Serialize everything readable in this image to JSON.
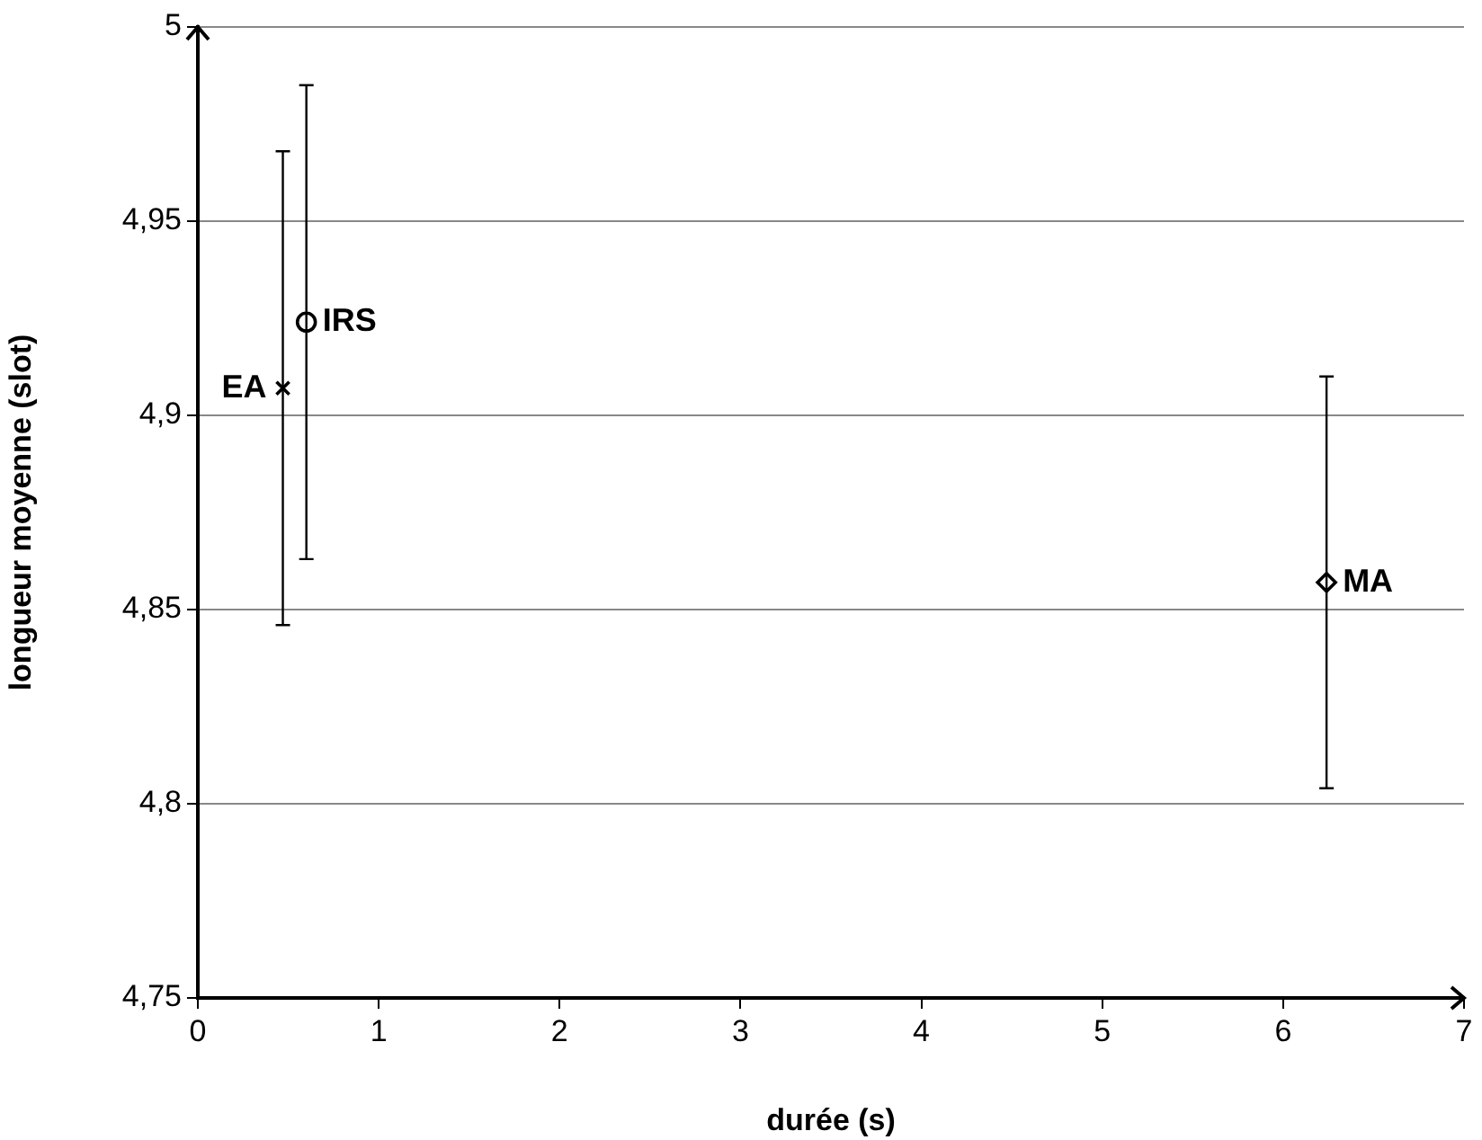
{
  "chart_data": {
    "type": "scatter",
    "xlabel": "durée (s)",
    "ylabel": "longueur moyenne (slot)",
    "xlim": [
      0,
      7
    ],
    "xticks": [
      0,
      1,
      2,
      3,
      4,
      5,
      6,
      7
    ],
    "ylim": [
      4.75,
      5
    ],
    "yticks": [
      {
        "value": 4.75,
        "label": "4,75"
      },
      {
        "value": 4.8,
        "label": "4,8"
      },
      {
        "value": 4.85,
        "label": "4,85"
      },
      {
        "value": 4.9,
        "label": "4,9"
      },
      {
        "value": 4.95,
        "label": "4,95"
      },
      {
        "value": 5,
        "label": "5"
      }
    ],
    "grid": "y",
    "legend": false,
    "series": [
      {
        "name": "EA",
        "color": "#000000",
        "marker": "cross",
        "x": [
          0.47
        ],
        "values": [
          4.907
        ],
        "errors": [
          0.061
        ]
      },
      {
        "name": "IRS",
        "color": "#000000",
        "marker": "circle",
        "x": [
          0.6
        ],
        "values": [
          4.924
        ],
        "errors": [
          0.061
        ]
      },
      {
        "name": "MA",
        "color": "#000000",
        "marker": "diamond",
        "x": [
          6.24
        ],
        "values": [
          4.857
        ],
        "errors": [
          0.053
        ]
      }
    ]
  }
}
